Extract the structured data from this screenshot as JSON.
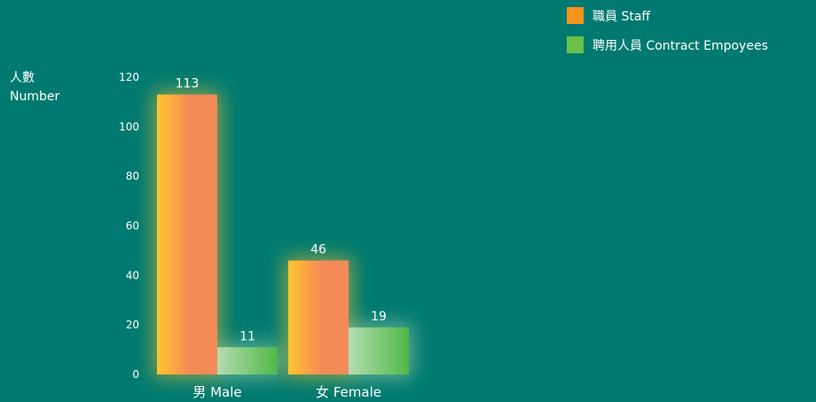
{
  "colors": {
    "background": "#007a70",
    "text": "#ffffff",
    "staff_light": "#ffc52e",
    "staff_dark": "#f58a59",
    "contract_light": "#b4ddb0",
    "contract_dark": "#50b848",
    "staff_legend": "#f7941d",
    "contract_legend": "#6cc04a"
  },
  "chart_data": {
    "type": "bar",
    "title": "",
    "ylabel_line1": "人數",
    "ylabel_line2": "Number",
    "xlabel": "",
    "categories": [
      "男 Male",
      "女 Female"
    ],
    "yticks": [
      "0",
      "20",
      "40",
      "60",
      "80",
      "100",
      "120"
    ],
    "ylim": [
      0,
      120
    ],
    "grid": false,
    "legend_position": "top-right",
    "series": [
      {
        "name": "職員 Staff",
        "values": [
          113,
          46
        ]
      },
      {
        "name": "聘用人員 Contract Empoyees",
        "values": [
          11,
          19
        ]
      }
    ]
  }
}
